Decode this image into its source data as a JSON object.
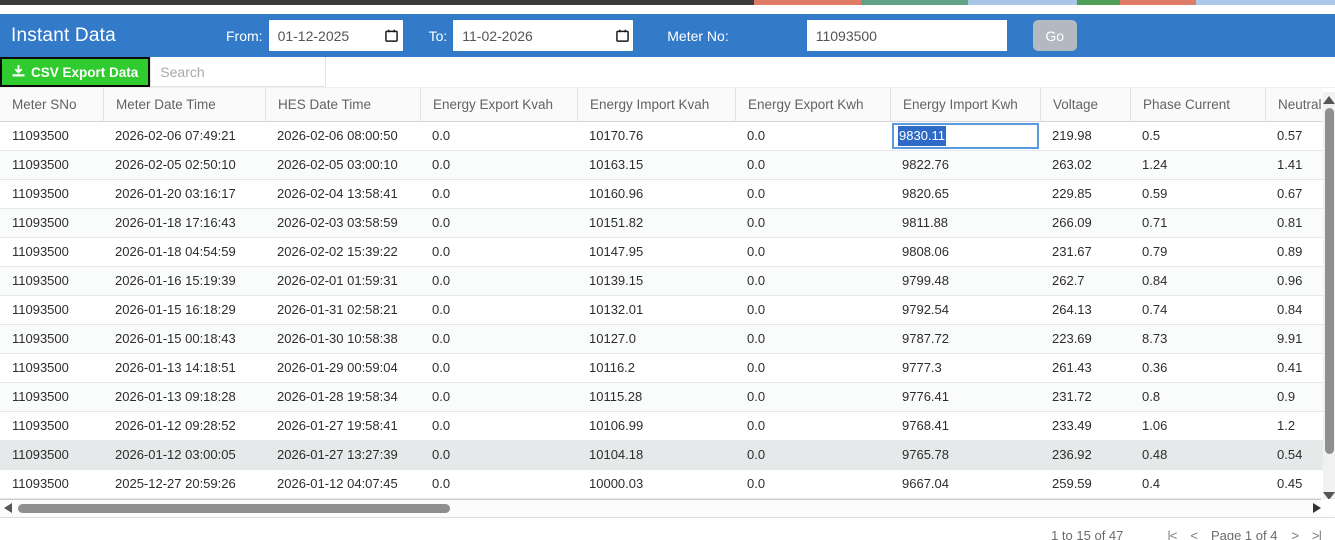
{
  "top_strip": {
    "segments": [
      {
        "name": "tab-bar-dark",
        "color": "#3b3b3b",
        "width": "56.5%"
      },
      {
        "name": "segment-red-1",
        "color": "#e07b68",
        "width": "8.0%"
      },
      {
        "name": "segment-teal",
        "color": "#5fa287",
        "width": "8.0%"
      },
      {
        "name": "segment-lightblue-1",
        "color": "#a9c6e6",
        "width": "8.2%"
      },
      {
        "name": "segment-green",
        "color": "#4f9e57",
        "width": "3.2%"
      },
      {
        "name": "segment-red-2",
        "color": "#e07b68",
        "width": "5.7%"
      },
      {
        "name": "segment-lightblue-2",
        "color": "#abc8e8",
        "width": "10.4%"
      }
    ]
  },
  "header": {
    "title": "Instant Data",
    "from_label": "From:",
    "from_value": "01-12-2025",
    "to_label": "To:",
    "to_value": "11-02-2026",
    "meter_label": "Meter No:",
    "meter_value": "11093500",
    "go_label": "Go",
    "bar_color": "#337ac8",
    "go_color": "#b2b9c0"
  },
  "toolbar": {
    "export_label": "CSV Export Data",
    "export_color": "#2fcb2f",
    "search_placeholder": "Search"
  },
  "table": {
    "columns": [
      "Meter SNo",
      "Meter Date Time",
      "HES Date Time",
      "Energy Export Kvah",
      "Energy Import Kvah",
      "Energy Export Kwh",
      "Energy Import Kwh",
      "Voltage",
      "Phase Current",
      "Neutral Current"
    ],
    "rows": [
      [
        "11093500",
        "2026-02-06 07:49:21",
        "2026-02-06 08:00:50",
        "0.0",
        "10170.76",
        "0.0",
        "9830.11",
        "219.98",
        "0.5",
        "0.57"
      ],
      [
        "11093500",
        "2026-02-05 02:50:10",
        "2026-02-05 03:00:10",
        "0.0",
        "10163.15",
        "0.0",
        "9822.76",
        "263.02",
        "1.24",
        "1.41"
      ],
      [
        "11093500",
        "2026-01-20 03:16:17",
        "2026-02-04 13:58:41",
        "0.0",
        "10160.96",
        "0.0",
        "9820.65",
        "229.85",
        "0.59",
        "0.67"
      ],
      [
        "11093500",
        "2026-01-18 17:16:43",
        "2026-02-03 03:58:59",
        "0.0",
        "10151.82",
        "0.0",
        "9811.88",
        "266.09",
        "0.71",
        "0.81"
      ],
      [
        "11093500",
        "2026-01-18 04:54:59",
        "2026-02-02 15:39:22",
        "0.0",
        "10147.95",
        "0.0",
        "9808.06",
        "231.67",
        "0.79",
        "0.89"
      ],
      [
        "11093500",
        "2026-01-16 15:19:39",
        "2026-02-01 01:59:31",
        "0.0",
        "10139.15",
        "0.0",
        "9799.48",
        "262.7",
        "0.84",
        "0.96"
      ],
      [
        "11093500",
        "2026-01-15 16:18:29",
        "2026-01-31 02:58:21",
        "0.0",
        "10132.01",
        "0.0",
        "9792.54",
        "264.13",
        "0.74",
        "0.84"
      ],
      [
        "11093500",
        "2026-01-15 00:18:43",
        "2026-01-30 10:58:38",
        "0.0",
        "10127.0",
        "0.0",
        "9787.72",
        "223.69",
        "8.73",
        "9.91"
      ],
      [
        "11093500",
        "2026-01-13 14:18:51",
        "2026-01-29 00:59:04",
        "0.0",
        "10116.2",
        "0.0",
        "9777.3",
        "261.43",
        "0.36",
        "0.41"
      ],
      [
        "11093500",
        "2026-01-13 09:18:28",
        "2026-01-28 19:58:34",
        "0.0",
        "10115.28",
        "0.0",
        "9776.41",
        "231.72",
        "0.8",
        "0.9"
      ],
      [
        "11093500",
        "2026-01-12 09:28:52",
        "2026-01-27 19:58:41",
        "0.0",
        "10106.99",
        "0.0",
        "9768.41",
        "233.49",
        "1.06",
        "1.2"
      ],
      [
        "11093500",
        "2026-01-12 03:00:05",
        "2026-01-27 13:27:39",
        "0.0",
        "10104.18",
        "0.0",
        "9765.78",
        "236.92",
        "0.48",
        "0.54"
      ],
      [
        "11093500",
        "2025-12-27 20:59:26",
        "2026-01-12 04:07:45",
        "0.0",
        "10000.03",
        "0.0",
        "9667.04",
        "259.59",
        "0.4",
        "0.45"
      ]
    ],
    "edited_cell": {
      "row_index": 0,
      "col_index": 6,
      "value": "9830.11",
      "text_selected": true,
      "selection_color": "#2e6bc8",
      "border_color": "#5a9ade"
    },
    "highlighted_row_index": 11,
    "highlight_color": "#e5e9e9"
  },
  "pagination": {
    "range_text": "1 to 15 of 47",
    "first_label": "|<",
    "prev_label": "<",
    "page_text": "Page 1 of 4",
    "next_label": ">",
    "last_label": ">|"
  }
}
